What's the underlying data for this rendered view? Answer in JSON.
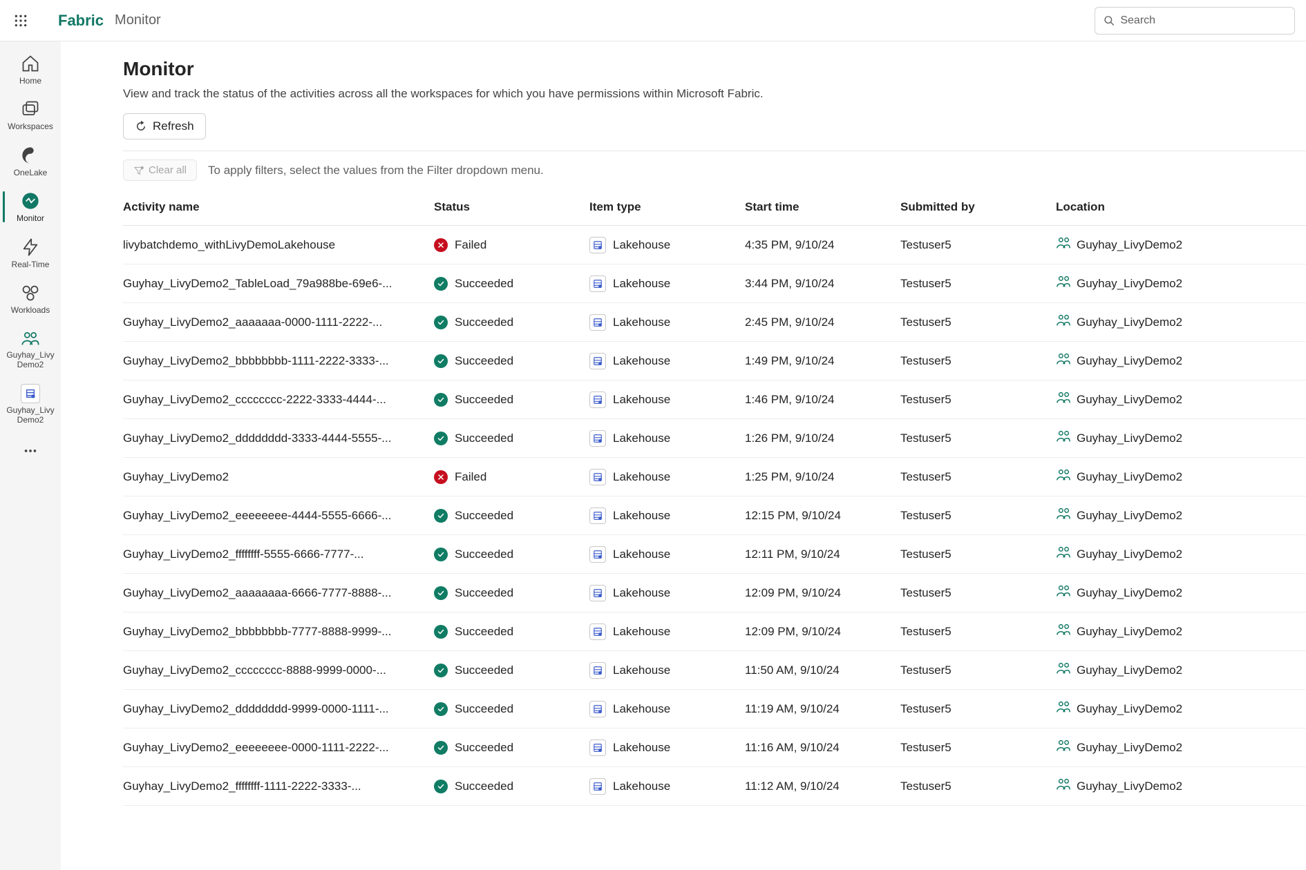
{
  "brand": "Fabric",
  "breadcrumb": "Monitor",
  "search": {
    "placeholder": "Search"
  },
  "sidebar": {
    "items": [
      {
        "label": "Home"
      },
      {
        "label": "Workspaces"
      },
      {
        "label": "OneLake"
      },
      {
        "label": "Monitor"
      },
      {
        "label": "Real-Time"
      },
      {
        "label": "Workloads"
      },
      {
        "label": "Guyhay_Livy\nDemo2"
      },
      {
        "label": "Guyhay_Livy\nDemo2"
      }
    ]
  },
  "page": {
    "title": "Monitor",
    "description": "View and track the status of the activities across all the workspaces for which you have permissions within Microsoft Fabric.",
    "refresh": "Refresh",
    "clear_all": "Clear all",
    "filter_hint": "To apply filters, select the values from the Filter dropdown menu."
  },
  "columns": {
    "activity": "Activity name",
    "status": "Status",
    "itemtype": "Item type",
    "start": "Start time",
    "submitted": "Submitted by",
    "location": "Location"
  },
  "status_colors": {
    "Succeeded": "#107c64",
    "Failed": "#c50f1f"
  },
  "accent_color": "#117865",
  "rows": [
    {
      "activity": "livybatchdemo_withLivyDemoLakehouse",
      "status": "Failed",
      "itemtype": "Lakehouse",
      "start": "4:35 PM, 9/10/24",
      "submitted": "Testuser5",
      "location": "Guyhay_LivyDemo2"
    },
    {
      "activity": "Guyhay_LivyDemo2_TableLoad_79a988be-69e6-...",
      "status": "Succeeded",
      "itemtype": "Lakehouse",
      "start": "3:44 PM, 9/10/24",
      "submitted": "Testuser5",
      "location": "Guyhay_LivyDemo2"
    },
    {
      "activity": "Guyhay_LivyDemo2_aaaaaaa-0000-1111-2222-...",
      "status": "Succeeded",
      "itemtype": "Lakehouse",
      "start": "2:45 PM, 9/10/24",
      "submitted": "Testuser5",
      "location": "Guyhay_LivyDemo2"
    },
    {
      "activity": "Guyhay_LivyDemo2_bbbbbbbb-1111-2222-3333-...",
      "status": "Succeeded",
      "itemtype": "Lakehouse",
      "start": "1:49 PM, 9/10/24",
      "submitted": "Testuser5",
      "location": "Guyhay_LivyDemo2"
    },
    {
      "activity": "Guyhay_LivyDemo2_cccccccc-2222-3333-4444-...",
      "status": "Succeeded",
      "itemtype": "Lakehouse",
      "start": "1:46 PM, 9/10/24",
      "submitted": "Testuser5",
      "location": "Guyhay_LivyDemo2"
    },
    {
      "activity": "Guyhay_LivyDemo2_dddddddd-3333-4444-5555-...",
      "status": "Succeeded",
      "itemtype": "Lakehouse",
      "start": "1:26 PM, 9/10/24",
      "submitted": "Testuser5",
      "location": "Guyhay_LivyDemo2"
    },
    {
      "activity": "Guyhay_LivyDemo2",
      "status": "Failed",
      "itemtype": "Lakehouse",
      "start": "1:25 PM, 9/10/24",
      "submitted": "Testuser5",
      "location": "Guyhay_LivyDemo2"
    },
    {
      "activity": "Guyhay_LivyDemo2_eeeeeeee-4444-5555-6666-...",
      "status": "Succeeded",
      "itemtype": "Lakehouse",
      "start": "12:15 PM, 9/10/24",
      "submitted": "Testuser5",
      "location": "Guyhay_LivyDemo2"
    },
    {
      "activity": "Guyhay_LivyDemo2_ffffffff-5555-6666-7777-...",
      "status": "Succeeded",
      "itemtype": "Lakehouse",
      "start": "12:11 PM, 9/10/24",
      "submitted": "Testuser5",
      "location": "Guyhay_LivyDemo2"
    },
    {
      "activity": "Guyhay_LivyDemo2_aaaaaaaa-6666-7777-8888-...",
      "status": "Succeeded",
      "itemtype": "Lakehouse",
      "start": "12:09 PM, 9/10/24",
      "submitted": "Testuser5",
      "location": "Guyhay_LivyDemo2"
    },
    {
      "activity": "Guyhay_LivyDemo2_bbbbbbbb-7777-8888-9999-...",
      "status": "Succeeded",
      "itemtype": "Lakehouse",
      "start": "12:09 PM, 9/10/24",
      "submitted": "Testuser5",
      "location": "Guyhay_LivyDemo2"
    },
    {
      "activity": "Guyhay_LivyDemo2_cccccccc-8888-9999-0000-...",
      "status": "Succeeded",
      "itemtype": "Lakehouse",
      "start": "11:50 AM, 9/10/24",
      "submitted": "Testuser5",
      "location": "Guyhay_LivyDemo2"
    },
    {
      "activity": "Guyhay_LivyDemo2_dddddddd-9999-0000-1111-...",
      "status": "Succeeded",
      "itemtype": "Lakehouse",
      "start": "11:19 AM, 9/10/24",
      "submitted": "Testuser5",
      "location": "Guyhay_LivyDemo2"
    },
    {
      "activity": "Guyhay_LivyDemo2_eeeeeeee-0000-1111-2222-...",
      "status": "Succeeded",
      "itemtype": "Lakehouse",
      "start": "11:16 AM, 9/10/24",
      "submitted": "Testuser5",
      "location": "Guyhay_LivyDemo2"
    },
    {
      "activity": "Guyhay_LivyDemo2_ffffffff-1111-2222-3333-...",
      "status": "Succeeded",
      "itemtype": "Lakehouse",
      "start": "11:12 AM, 9/10/24",
      "submitted": "Testuser5",
      "location": "Guyhay_LivyDemo2"
    }
  ]
}
